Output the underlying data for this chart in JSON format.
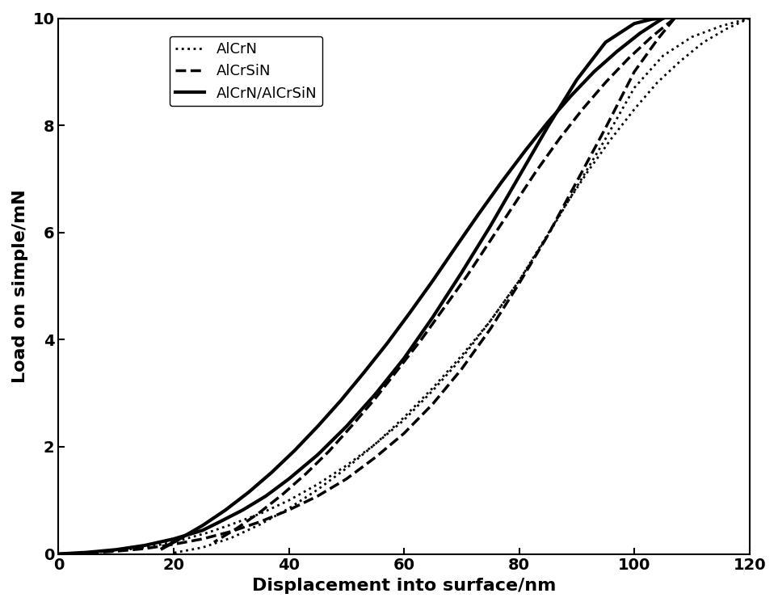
{
  "title": "",
  "xlabel": "Displacement into surface/nm",
  "ylabel": "Load on simple/mN",
  "xlim": [
    0,
    120
  ],
  "ylim": [
    0,
    10
  ],
  "xticks": [
    0,
    20,
    40,
    60,
    80,
    100,
    120
  ],
  "yticks": [
    0,
    2,
    4,
    6,
    8,
    10
  ],
  "xlabel_fontsize": 16,
  "ylabel_fontsize": 16,
  "tick_fontsize": 14,
  "legend_fontsize": 13,
  "background_color": "#ffffff",
  "AlCrN": {
    "load_x": [
      0,
      5,
      10,
      15,
      18,
      22,
      26,
      30,
      35,
      40,
      45,
      50,
      55,
      60,
      65,
      70,
      75,
      80,
      85,
      90,
      95,
      100,
      105,
      110,
      115,
      120
    ],
    "load_y": [
      0,
      0.02,
      0.06,
      0.12,
      0.18,
      0.28,
      0.4,
      0.55,
      0.75,
      1.0,
      1.3,
      1.65,
      2.05,
      2.5,
      3.05,
      3.65,
      4.35,
      5.1,
      5.95,
      6.85,
      7.75,
      8.7,
      9.3,
      9.65,
      9.85,
      10.0
    ],
    "unload_x": [
      120,
      116,
      112,
      108,
      104,
      100,
      96,
      92,
      88,
      84,
      80,
      75,
      70,
      65,
      60,
      55,
      50,
      45,
      40,
      35,
      30,
      25,
      20
    ],
    "unload_y": [
      10.0,
      9.8,
      9.55,
      9.2,
      8.8,
      8.3,
      7.75,
      7.15,
      6.5,
      5.8,
      5.1,
      4.35,
      3.7,
      3.1,
      2.55,
      2.05,
      1.6,
      1.2,
      0.85,
      0.55,
      0.3,
      0.12,
      0.02
    ],
    "linestyle": "dotted",
    "linewidth": 2.0,
    "color": "#000000"
  },
  "AlCrSiN": {
    "load_x": [
      0,
      5,
      10,
      15,
      20,
      25,
      30,
      35,
      40,
      45,
      50,
      55,
      60,
      65,
      70,
      75,
      80,
      85,
      90,
      95,
      100,
      104,
      107
    ],
    "load_y": [
      0,
      0.02,
      0.05,
      0.1,
      0.18,
      0.28,
      0.42,
      0.6,
      0.82,
      1.08,
      1.4,
      1.8,
      2.25,
      2.8,
      3.45,
      4.2,
      5.05,
      5.95,
      6.95,
      7.95,
      9.0,
      9.6,
      10.0
    ],
    "unload_x": [
      107,
      103,
      99,
      95,
      91,
      87,
      83,
      79,
      75,
      71,
      67,
      63,
      59,
      55,
      51,
      47,
      43,
      39,
      35,
      31,
      27
    ],
    "unload_y": [
      10.0,
      9.65,
      9.25,
      8.8,
      8.3,
      7.75,
      7.15,
      6.5,
      5.85,
      5.2,
      4.6,
      4.0,
      3.45,
      2.9,
      2.4,
      1.92,
      1.5,
      1.12,
      0.78,
      0.48,
      0.22
    ],
    "linestyle": "dashed",
    "linewidth": 2.5,
    "color": "#000000"
  },
  "AlCrN_AlCrSiN": {
    "load_x": [
      0,
      5,
      10,
      15,
      20,
      25,
      28,
      32,
      36,
      40,
      45,
      50,
      55,
      60,
      65,
      70,
      75,
      80,
      85,
      90,
      95,
      100,
      103,
      105
    ],
    "load_y": [
      0,
      0.03,
      0.08,
      0.16,
      0.28,
      0.44,
      0.6,
      0.82,
      1.08,
      1.4,
      1.85,
      2.38,
      2.98,
      3.65,
      4.42,
      5.25,
      6.12,
      7.05,
      7.98,
      8.85,
      9.55,
      9.9,
      9.98,
      10.0
    ],
    "unload_x": [
      105,
      101,
      97,
      93,
      89,
      85,
      81,
      77,
      73,
      69,
      65,
      61,
      57,
      53,
      49,
      45,
      41,
      37,
      33,
      29,
      25,
      21,
      18
    ],
    "unload_y": [
      10.0,
      9.72,
      9.38,
      9.0,
      8.55,
      8.06,
      7.52,
      6.95,
      6.35,
      5.73,
      5.1,
      4.5,
      3.92,
      3.38,
      2.86,
      2.38,
      1.93,
      1.52,
      1.15,
      0.82,
      0.53,
      0.28,
      0.1
    ],
    "linestyle": "solid",
    "linewidth": 3.0,
    "color": "#000000"
  }
}
